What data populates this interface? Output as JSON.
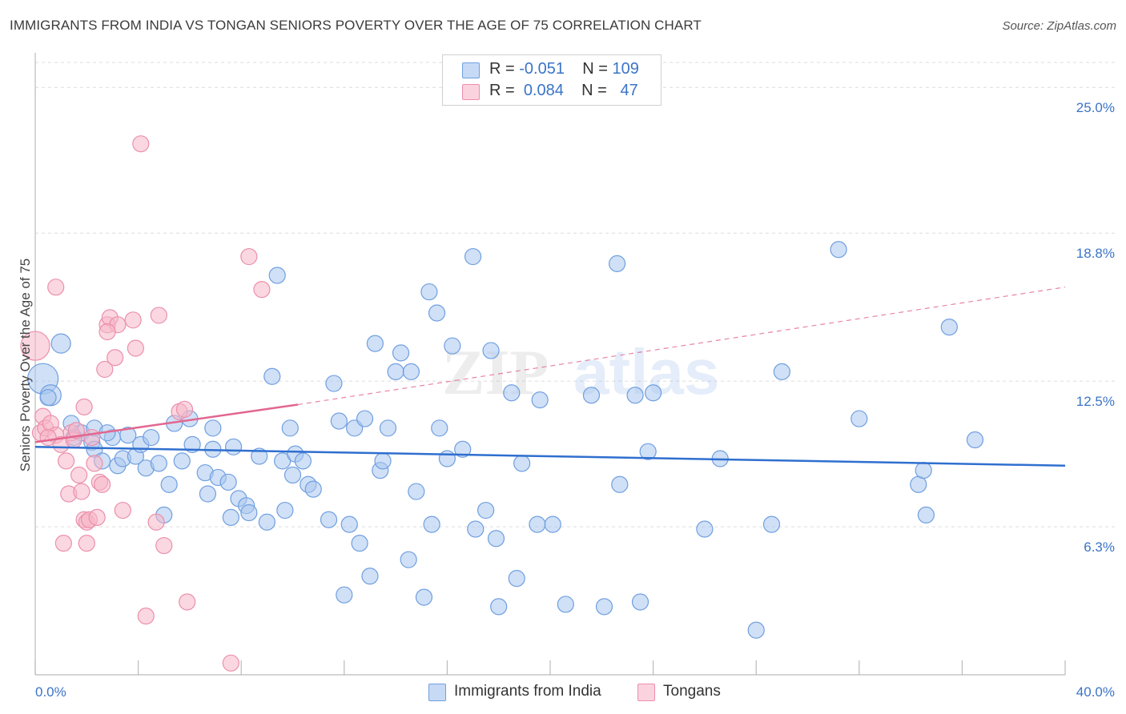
{
  "title": "IMMIGRANTS FROM INDIA VS TONGAN SENIORS POVERTY OVER THE AGE OF 75 CORRELATION CHART",
  "source": "Source: ZipAtlas.com",
  "watermark": {
    "zip": "ZIP",
    "atlas": "atlas"
  },
  "legend": {
    "rows": [
      {
        "r_label": "R =",
        "r_value": "-0.051",
        "n_label": "N =",
        "n_value": "109",
        "color": "#a9c6ef"
      },
      {
        "r_label": "R =",
        "r_value": "0.084",
        "n_label": "N =",
        "n_value": "47",
        "color": "#f5b6c8"
      }
    ]
  },
  "bottom_legend": [
    {
      "label": "Immigrants from India",
      "color": "#a9c6ef"
    },
    {
      "label": "Tongans",
      "color": "#f5b6c8"
    }
  ],
  "chart_data": {
    "type": "scatter",
    "title": "IMMIGRANTS FROM INDIA VS TONGAN SENIORS POVERTY OVER THE AGE OF 75 CORRELATION CHART",
    "xlabel": "",
    "ylabel": "Seniors Poverty Over the Age of 75",
    "xlim": [
      0,
      40
    ],
    "ylim": [
      0,
      26.2
    ],
    "x_tick_labels": [
      "0.0%",
      "40.0%"
    ],
    "y_ticks": [
      {
        "value": 6.3,
        "label": "6.3%"
      },
      {
        "value": 12.5,
        "label": "12.5%"
      },
      {
        "value": 18.8,
        "label": "18.8%"
      },
      {
        "value": 25.0,
        "label": "25.0%"
      }
    ],
    "grid": true,
    "series": [
      {
        "name": "Immigrants from India",
        "color": "#6f9fe0",
        "fill": "#a9c6ef",
        "trend": {
          "x": [
            0,
            40
          ],
          "y": [
            9.7,
            8.9
          ],
          "style": "solid",
          "color": "#2f6fcf"
        },
        "points": [
          [
            0.3,
            12.6
          ],
          [
            0.6,
            11.9
          ],
          [
            1.0,
            14.1
          ],
          [
            1.4,
            10.7
          ],
          [
            1.8,
            10.3
          ],
          [
            2.2,
            9.9
          ],
          [
            2.3,
            10.5
          ],
          [
            2.3,
            9.6
          ],
          [
            2.6,
            9.1
          ],
          [
            3.0,
            10.1
          ],
          [
            3.2,
            8.9
          ],
          [
            3.4,
            9.2
          ],
          [
            3.6,
            10.2
          ],
          [
            3.9,
            9.3
          ],
          [
            4.1,
            9.8
          ],
          [
            4.3,
            8.8
          ],
          [
            4.5,
            10.1
          ],
          [
            4.8,
            9.0
          ],
          [
            5.0,
            6.8
          ],
          [
            5.2,
            8.1
          ],
          [
            5.4,
            10.7
          ],
          [
            5.7,
            9.1
          ],
          [
            6.0,
            10.9
          ],
          [
            6.1,
            9.8
          ],
          [
            6.6,
            8.6
          ],
          [
            6.7,
            7.7
          ],
          [
            6.9,
            10.5
          ],
          [
            7.1,
            8.4
          ],
          [
            7.5,
            8.2
          ],
          [
            7.6,
            6.7
          ],
          [
            7.7,
            9.7
          ],
          [
            7.9,
            7.5
          ],
          [
            8.2,
            7.2
          ],
          [
            8.3,
            6.9
          ],
          [
            8.7,
            9.3
          ],
          [
            9.0,
            6.5
          ],
          [
            9.2,
            12.7
          ],
          [
            9.4,
            17.0
          ],
          [
            9.6,
            9.1
          ],
          [
            9.7,
            7.0
          ],
          [
            10.0,
            8.5
          ],
          [
            10.1,
            9.4
          ],
          [
            10.4,
            9.1
          ],
          [
            10.6,
            8.1
          ],
          [
            10.8,
            7.9
          ],
          [
            11.4,
            6.6
          ],
          [
            11.6,
            12.4
          ],
          [
            11.8,
            10.8
          ],
          [
            12.0,
            3.4
          ],
          [
            12.2,
            6.4
          ],
          [
            12.4,
            10.5
          ],
          [
            12.6,
            5.6
          ],
          [
            12.8,
            10.9
          ],
          [
            13.0,
            4.2
          ],
          [
            13.2,
            14.1
          ],
          [
            13.4,
            8.7
          ],
          [
            13.5,
            9.1
          ],
          [
            13.7,
            10.5
          ],
          [
            14.0,
            12.9
          ],
          [
            14.2,
            13.7
          ],
          [
            14.5,
            4.9
          ],
          [
            14.6,
            12.9
          ],
          [
            14.8,
            7.8
          ],
          [
            15.1,
            3.3
          ],
          [
            15.3,
            16.3
          ],
          [
            15.6,
            15.4
          ],
          [
            15.7,
            10.5
          ],
          [
            16.0,
            9.2
          ],
          [
            16.2,
            14.0
          ],
          [
            16.6,
            9.6
          ],
          [
            17.0,
            17.8
          ],
          [
            17.1,
            6.2
          ],
          [
            17.5,
            7.0
          ],
          [
            17.7,
            13.8
          ],
          [
            17.9,
            5.8
          ],
          [
            18.0,
            2.9
          ],
          [
            18.5,
            12.0
          ],
          [
            18.7,
            4.1
          ],
          [
            19.5,
            6.4
          ],
          [
            19.6,
            11.7
          ],
          [
            20.1,
            6.4
          ],
          [
            20.6,
            3.0
          ],
          [
            21.6,
            11.9
          ],
          [
            22.1,
            2.9
          ],
          [
            22.6,
            17.5
          ],
          [
            22.7,
            8.1
          ],
          [
            23.3,
            11.9
          ],
          [
            23.5,
            3.1
          ],
          [
            23.8,
            9.5
          ],
          [
            24.0,
            12.0
          ],
          [
            26.0,
            6.2
          ],
          [
            26.6,
            9.2
          ],
          [
            28.6,
            6.4
          ],
          [
            29.0,
            12.9
          ],
          [
            31.2,
            18.1
          ],
          [
            32.0,
            10.9
          ],
          [
            34.3,
            8.1
          ],
          [
            34.5,
            8.7
          ],
          [
            34.6,
            6.8
          ],
          [
            35.5,
            14.8
          ],
          [
            36.5,
            10.0
          ],
          [
            28.0,
            1.9
          ],
          [
            0.5,
            11.8
          ],
          [
            1.5,
            10.1
          ],
          [
            2.8,
            10.3
          ],
          [
            6.9,
            9.6
          ],
          [
            15.4,
            6.4
          ],
          [
            18.9,
            9.0
          ],
          [
            9.9,
            10.5
          ]
        ]
      },
      {
        "name": "Tongans",
        "color": "#ec8fab",
        "fill": "#f5b6c8",
        "trend": {
          "x": [
            0,
            10.2
          ],
          "y": [
            9.9,
            11.5
          ],
          "style": "solid",
          "color": "#e2668f",
          "extension": {
            "x": [
              10.2,
              40
            ],
            "y": [
              11.5,
              16.5
            ],
            "style": "dashed"
          }
        },
        "points": [
          [
            0.0,
            14.0
          ],
          [
            0.2,
            10.3
          ],
          [
            0.3,
            11.0
          ],
          [
            0.4,
            10.5
          ],
          [
            0.6,
            10.7
          ],
          [
            0.8,
            10.2
          ],
          [
            0.8,
            16.5
          ],
          [
            1.0,
            9.8
          ],
          [
            1.2,
            9.1
          ],
          [
            1.3,
            7.7
          ],
          [
            1.4,
            10.3
          ],
          [
            1.5,
            10.0
          ],
          [
            1.6,
            10.4
          ],
          [
            1.7,
            8.5
          ],
          [
            1.8,
            7.8
          ],
          [
            1.9,
            11.4
          ],
          [
            1.9,
            6.6
          ],
          [
            2.0,
            6.5
          ],
          [
            2.0,
            5.6
          ],
          [
            2.1,
            6.6
          ],
          [
            2.2,
            10.1
          ],
          [
            2.3,
            9.0
          ],
          [
            2.4,
            6.7
          ],
          [
            2.5,
            8.2
          ],
          [
            2.6,
            8.1
          ],
          [
            2.7,
            13.0
          ],
          [
            2.8,
            14.9
          ],
          [
            2.9,
            15.2
          ],
          [
            3.1,
            13.5
          ],
          [
            3.2,
            14.9
          ],
          [
            3.4,
            7.0
          ],
          [
            3.8,
            15.1
          ],
          [
            3.9,
            13.9
          ],
          [
            4.1,
            22.6
          ],
          [
            4.3,
            2.5
          ],
          [
            4.7,
            6.5
          ],
          [
            4.8,
            15.3
          ],
          [
            5.0,
            5.5
          ],
          [
            5.6,
            11.2
          ],
          [
            5.9,
            3.1
          ],
          [
            7.6,
            0.5
          ],
          [
            8.3,
            17.8
          ],
          [
            8.8,
            16.4
          ],
          [
            1.1,
            5.6
          ],
          [
            0.5,
            10.1
          ],
          [
            5.8,
            11.3
          ],
          [
            2.8,
            14.6
          ]
        ]
      }
    ]
  }
}
